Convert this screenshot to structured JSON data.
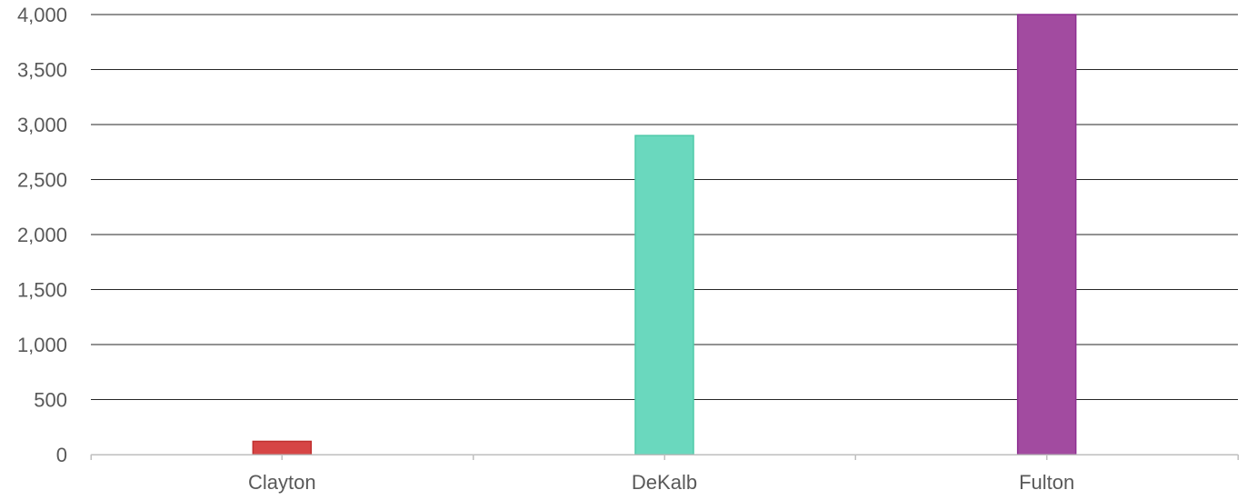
{
  "chart_data": {
    "type": "bar",
    "title": "",
    "xlabel": "",
    "ylabel": "",
    "categories": [
      "Clayton",
      "DeKalb",
      "Fulton"
    ],
    "values": [
      120,
      2900,
      4000
    ],
    "colors": [
      "#d64545",
      "#6ad8be",
      "#a24ba0"
    ],
    "stroke_colors": [
      "#c0302f",
      "#4fcaa9",
      "#8e2f92"
    ],
    "ylim": [
      0,
      4000
    ],
    "yticks": [
      0,
      500,
      1000,
      1500,
      2000,
      2500,
      3000,
      3500,
      4000
    ],
    "ytick_labels": [
      "0",
      "500",
      "1,000",
      "1,500",
      "2,000",
      "2,500",
      "3,000",
      "3,500",
      "4,000"
    ],
    "grid": true,
    "legend": "none"
  }
}
